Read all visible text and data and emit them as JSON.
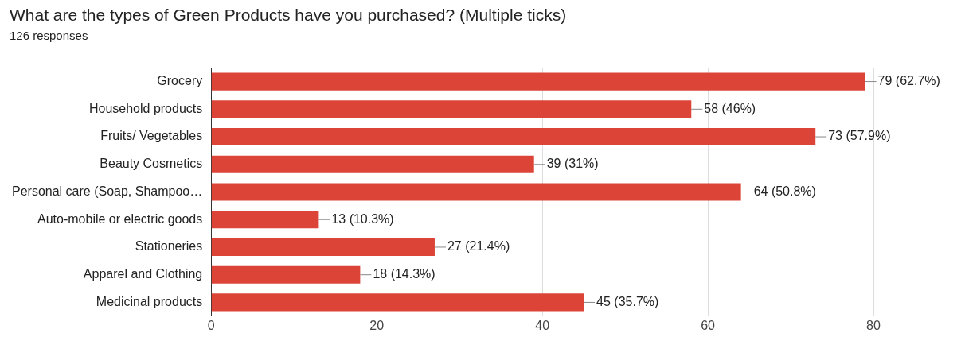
{
  "chart_data": {
    "type": "bar",
    "orientation": "horizontal",
    "title": "What are the types of Green Products have you purchased? (Multiple ticks)",
    "subtitle": "126 responses",
    "categories": [
      "Grocery",
      "Household products",
      "Fruits/ Vegetables",
      "Beauty Cosmetics",
      "Personal care (Soap, Shampoo…",
      "Auto-mobile or electric goods",
      "Stationeries",
      "Apparel and Clothing",
      "Medicinal products"
    ],
    "values": [
      79,
      58,
      73,
      39,
      64,
      13,
      27,
      18,
      45
    ],
    "value_labels": [
      "79 (62.7%)",
      "58 (46%)",
      "73 (57.9%)",
      "39 (31%)",
      "64 (50.8%)",
      "13 (10.3%)",
      "27 (21.4%)",
      "18 (14.3%)",
      "45 (35.7%)"
    ],
    "color": "#db4437",
    "xlim": [
      0,
      80
    ],
    "xticks": [
      0,
      20,
      40,
      60,
      80
    ],
    "grid": "x",
    "legend": false
  }
}
